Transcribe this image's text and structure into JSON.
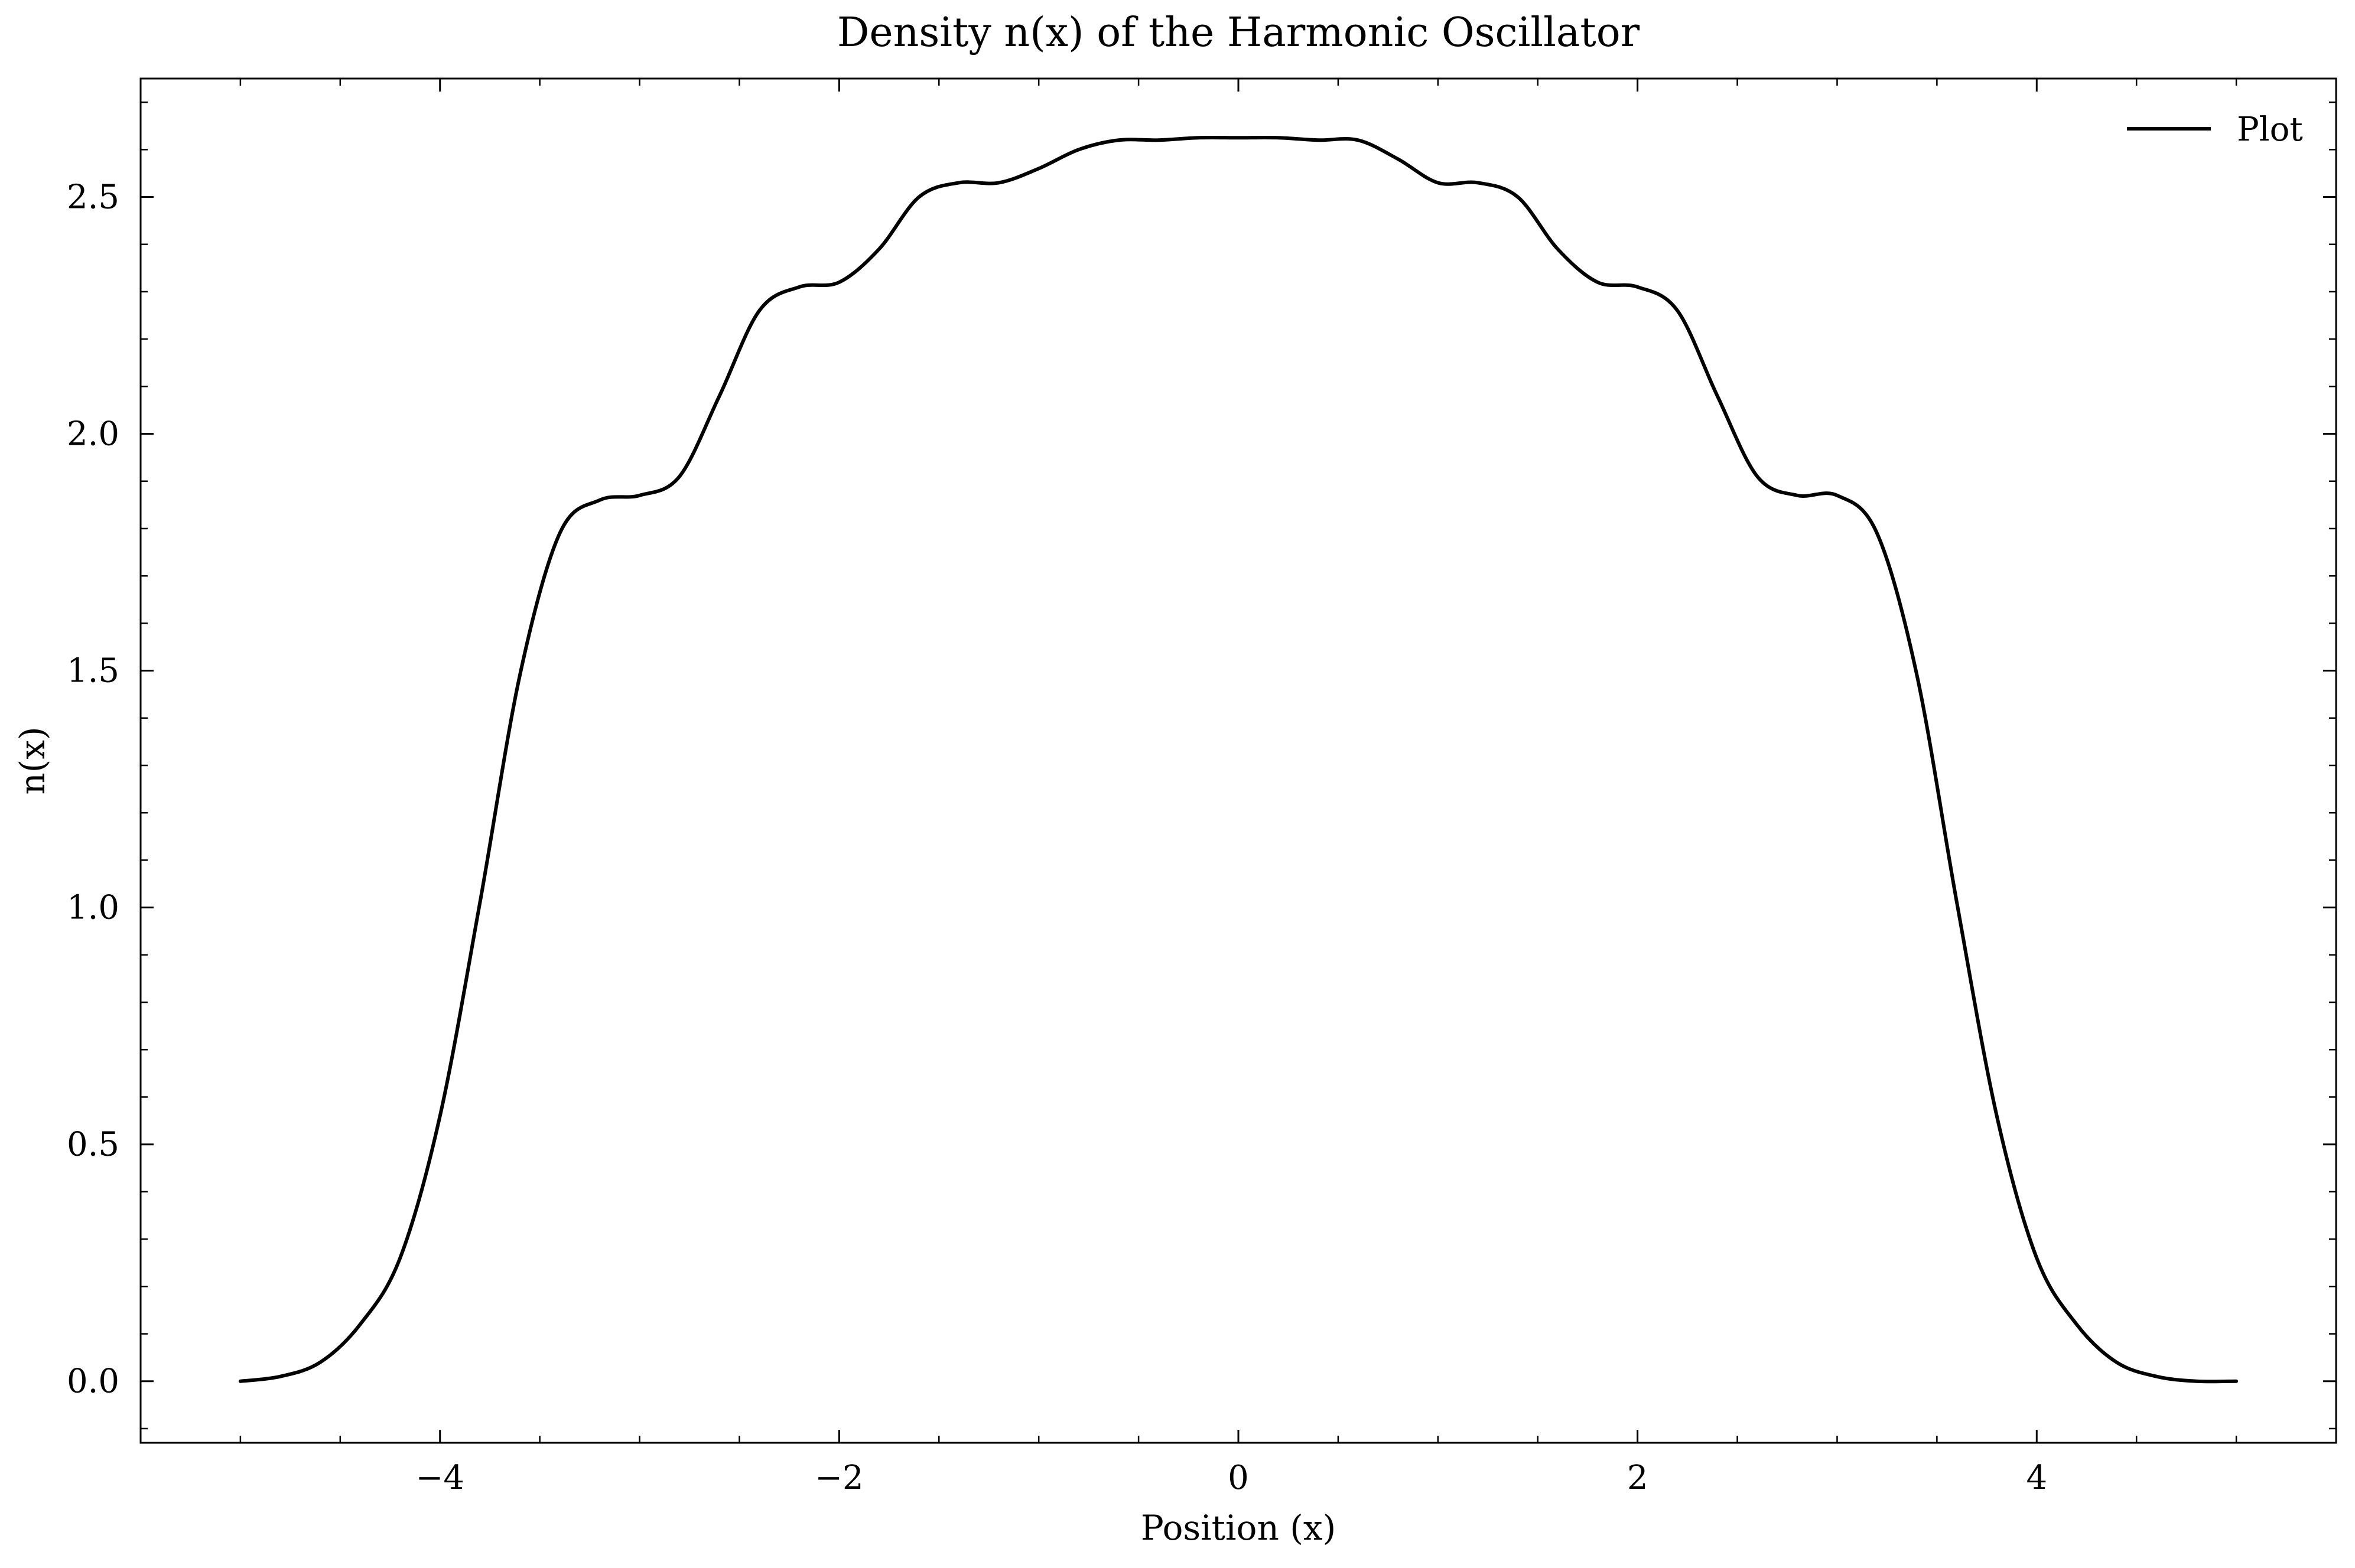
{
  "chart_data": {
    "type": "line",
    "title": "Density n(x) of the Harmonic Oscillator",
    "xlabel": "Position (x)",
    "ylabel": "n(x)",
    "xlim": [
      -5.5,
      5.5
    ],
    "ylim": [
      -0.13,
      2.75
    ],
    "xticks": [
      -4,
      -2,
      0,
      2,
      4
    ],
    "xtick_labels": [
      "−4",
      "−2",
      "0",
      "2",
      "4"
    ],
    "yticks": [
      0.0,
      0.5,
      1.0,
      1.5,
      2.0,
      2.5
    ],
    "ytick_labels": [
      "0.0",
      "0.5",
      "1.0",
      "1.5",
      "2.0",
      "2.5"
    ],
    "grid": false,
    "legend_position": "top-right",
    "line_color": "#000000",
    "series": [
      {
        "name": "Plot",
        "x": [
          -5.0,
          -4.8,
          -4.6,
          -4.4,
          -4.2,
          -4.0,
          -3.8,
          -3.6,
          -3.4,
          -3.2,
          -3.0,
          -2.8,
          -2.6,
          -2.4,
          -2.2,
          -2.0,
          -1.8,
          -1.6,
          -1.4,
          -1.2,
          -1.0,
          -0.8,
          -0.6,
          -0.4,
          -0.2,
          0.0,
          0.2,
          0.4,
          0.6,
          0.8,
          1.0,
          1.2,
          1.4,
          1.6,
          1.8,
          2.0,
          2.2,
          2.4,
          2.6,
          2.8,
          3.0,
          3.2,
          3.4,
          3.6,
          3.8,
          4.0,
          4.2,
          4.4,
          4.6,
          4.8,
          5.0
        ],
        "y": [
          0.0,
          0.01,
          0.04,
          0.12,
          0.26,
          0.56,
          1.01,
          1.49,
          1.79,
          1.86,
          1.87,
          1.91,
          2.08,
          2.26,
          2.31,
          2.32,
          2.39,
          2.5,
          2.53,
          2.53,
          2.56,
          2.6,
          2.62,
          2.62,
          2.625,
          2.625,
          2.625,
          2.62,
          2.62,
          2.58,
          2.53,
          2.53,
          2.5,
          2.39,
          2.32,
          2.31,
          2.26,
          2.08,
          1.91,
          1.87,
          1.87,
          1.79,
          1.49,
          1.01,
          0.56,
          0.26,
          0.12,
          0.04,
          0.01,
          0.0,
          0.0
        ]
      }
    ]
  }
}
